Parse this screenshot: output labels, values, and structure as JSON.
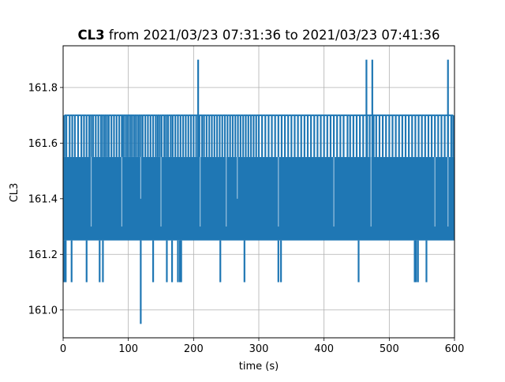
{
  "chart_data": {
    "type": "line",
    "title": {
      "bold": "CL3",
      "rest": "from 2021/03/23 07:31:36 to 2021/03/23 07:41:36"
    },
    "xlabel": "time (s)",
    "ylabel": "CL3",
    "xlim": [
      0,
      600
    ],
    "ylim": [
      160.9,
      161.95
    ],
    "xticks": [
      0,
      100,
      200,
      300,
      400,
      500,
      600
    ],
    "yticks": [
      161.0,
      161.2,
      161.4,
      161.6,
      161.8
    ],
    "xtick_labels": [
      "0",
      "100",
      "200",
      "300",
      "400",
      "500",
      "600"
    ],
    "ytick_labels": [
      "161.0",
      "161.2",
      "161.4",
      "161.6",
      "161.8"
    ],
    "grid": true,
    "series": [
      {
        "color": "#1f77b4",
        "band": {
          "low": 161.25,
          "high": 161.55
        },
        "high_spikes": {
          "value": 161.7,
          "x": [
            2,
            5,
            10,
            14,
            18,
            23,
            28,
            32,
            36,
            40,
            43,
            46,
            50,
            54,
            58,
            61,
            64,
            67,
            70,
            74,
            78,
            82,
            86,
            90,
            92,
            95,
            98,
            101,
            104,
            107,
            110,
            113,
            116,
            119,
            122,
            126,
            130,
            134,
            138,
            142,
            145,
            148,
            151,
            155,
            158,
            161,
            165,
            168,
            172,
            176,
            180,
            184,
            188,
            192,
            196,
            200,
            204,
            209,
            213,
            216,
            220,
            224,
            228,
            232,
            236,
            240,
            244,
            248,
            252,
            256,
            260,
            264,
            268,
            272,
            276,
            280,
            284,
            288,
            292,
            296,
            300,
            305,
            310,
            315,
            320,
            325,
            330,
            335,
            340,
            345,
            350,
            355,
            360,
            365,
            370,
            375,
            380,
            385,
            390,
            395,
            400,
            405,
            410,
            415,
            420,
            425,
            430,
            436,
            440,
            445,
            450,
            455,
            460,
            466,
            470,
            476,
            480,
            485,
            490,
            495,
            500,
            505,
            510,
            515,
            520,
            525,
            530,
            535,
            540,
            545,
            550,
            555,
            560,
            565,
            570,
            575,
            580,
            585,
            590,
            595,
            598
          ]
        },
        "peak_spikes": [
          {
            "x": 207,
            "y": 161.9
          },
          {
            "x": 465,
            "y": 161.9
          },
          {
            "x": 474,
            "y": 161.9
          },
          {
            "x": 590,
            "y": 161.9
          }
        ],
        "low_spikes": [
          {
            "x": 2,
            "y": 161.1
          },
          {
            "x": 4,
            "y": 161.1
          },
          {
            "x": 13,
            "y": 161.1
          },
          {
            "x": 36,
            "y": 161.1
          },
          {
            "x": 56,
            "y": 161.1
          },
          {
            "x": 61,
            "y": 161.1
          },
          {
            "x": 119,
            "y": 160.95
          },
          {
            "x": 138,
            "y": 161.1
          },
          {
            "x": 159,
            "y": 161.1
          },
          {
            "x": 167,
            "y": 161.1
          },
          {
            "x": 176,
            "y": 161.1
          },
          {
            "x": 179,
            "y": 161.1
          },
          {
            "x": 181,
            "y": 161.1
          },
          {
            "x": 241,
            "y": 161.1
          },
          {
            "x": 278,
            "y": 161.1
          },
          {
            "x": 330,
            "y": 161.1
          },
          {
            "x": 334,
            "y": 161.1
          },
          {
            "x": 453,
            "y": 161.1
          },
          {
            "x": 539,
            "y": 161.1
          },
          {
            "x": 541,
            "y": 161.1
          },
          {
            "x": 544,
            "y": 161.1
          },
          {
            "x": 557,
            "y": 161.1
          }
        ],
        "mid_dips": [
          {
            "x": 43,
            "y": 161.3
          },
          {
            "x": 90,
            "y": 161.3
          },
          {
            "x": 119,
            "y": 161.4
          },
          {
            "x": 150,
            "y": 161.3
          },
          {
            "x": 210,
            "y": 161.3
          },
          {
            "x": 250,
            "y": 161.3
          },
          {
            "x": 267,
            "y": 161.4
          },
          {
            "x": 330,
            "y": 161.3
          },
          {
            "x": 415,
            "y": 161.3
          },
          {
            "x": 472,
            "y": 161.3
          },
          {
            "x": 570,
            "y": 161.3
          },
          {
            "x": 590,
            "y": 161.3
          }
        ]
      }
    ]
  }
}
